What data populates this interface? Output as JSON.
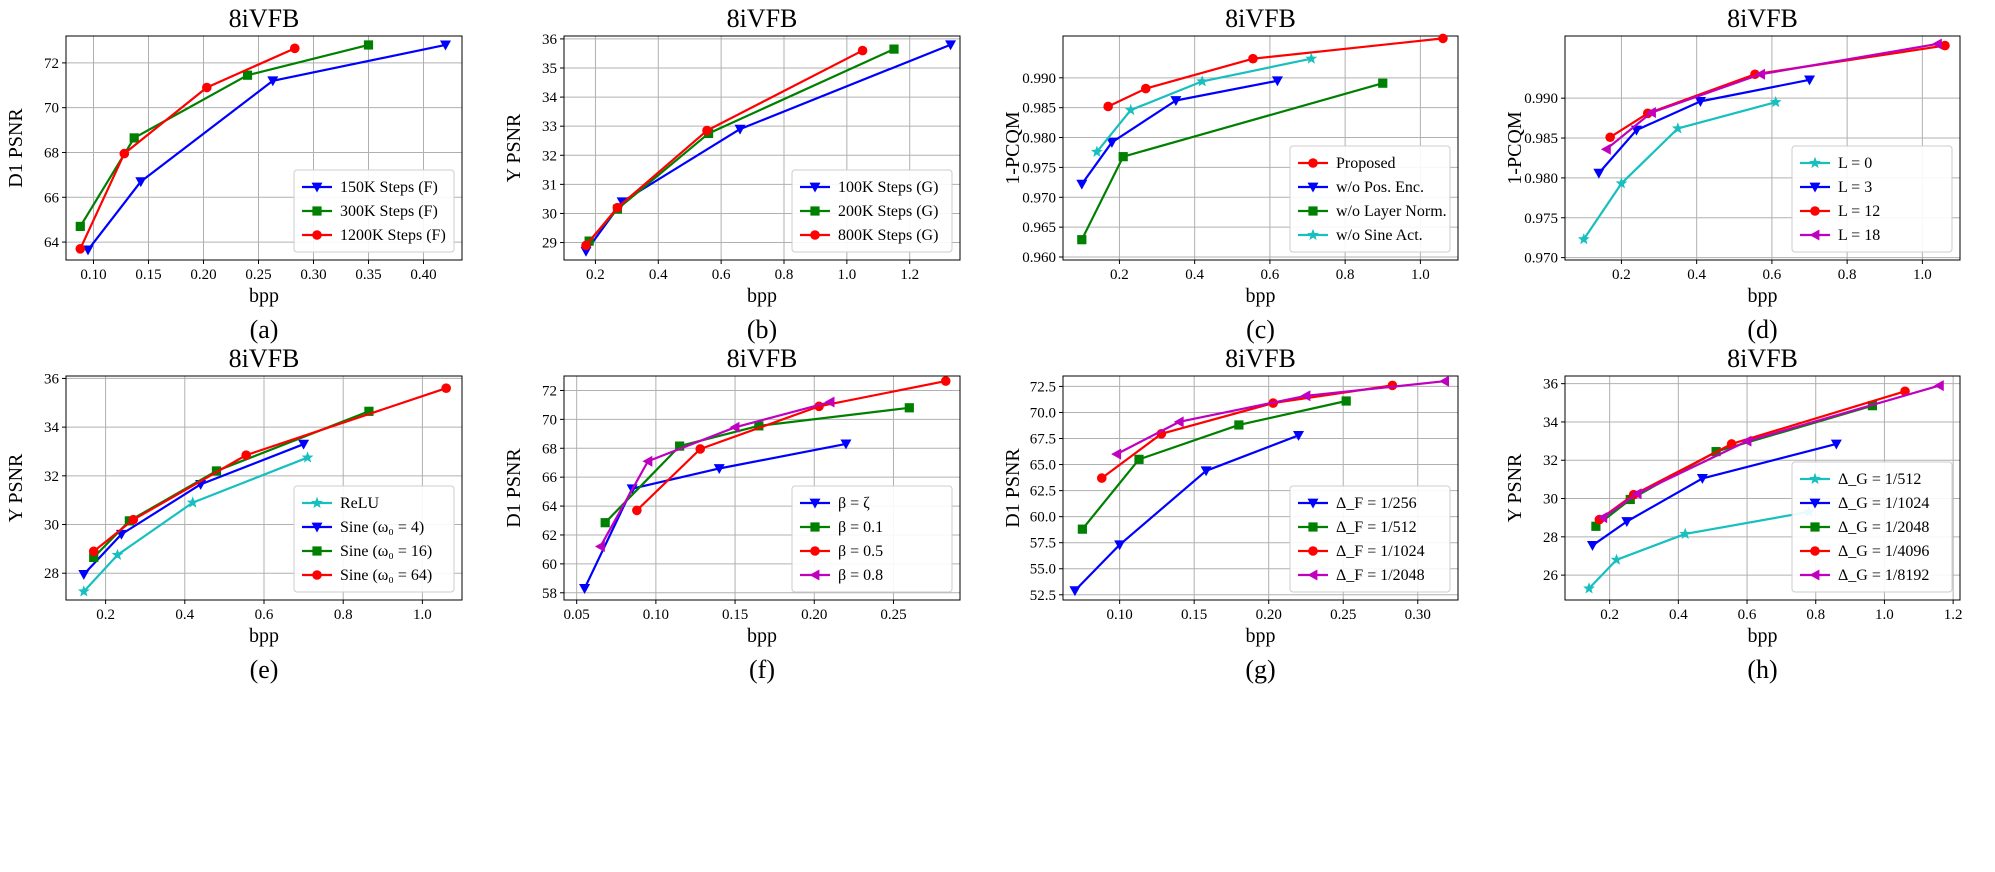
{
  "figure": {
    "colors": {
      "blue": "#0000ff",
      "green": "#008000",
      "red": "#ff0000",
      "cyan": "#17bfbf",
      "magenta": "#bf00bf",
      "grid": "#b0b0b0"
    }
  },
  "chart_data": [
    {
      "type": "line",
      "title": "8iVFB",
      "caption": "(a)",
      "xlabel": "bpp",
      "ylabel": "D1 PSNR",
      "xlim": [
        0.075,
        0.435
      ],
      "ylim": [
        63.2,
        73.2
      ],
      "xticks": [
        0.1,
        0.15,
        0.2,
        0.25,
        0.3,
        0.35,
        0.4
      ],
      "xtick_labels": [
        "0.10",
        "0.15",
        "0.20",
        "0.25",
        "0.30",
        "0.35",
        "0.40"
      ],
      "yticks": [
        64,
        66,
        68,
        70,
        72
      ],
      "ytick_labels": [
        "64",
        "66",
        "68",
        "70",
        "72"
      ],
      "legend_position": "lower-right",
      "series": [
        {
          "name": "150K Steps (F)",
          "color": "blue",
          "marker": "tri_down",
          "x": [
            0.095,
            0.143,
            0.263,
            0.42
          ],
          "y": [
            63.65,
            66.7,
            71.2,
            72.8
          ]
        },
        {
          "name": "300K Steps (F)",
          "color": "green",
          "marker": "square",
          "x": [
            0.088,
            0.137,
            0.24,
            0.35
          ],
          "y": [
            64.7,
            68.65,
            71.45,
            72.8
          ]
        },
        {
          "name": "1200K Steps (F)",
          "color": "red",
          "marker": "circle",
          "x": [
            0.088,
            0.128,
            0.203,
            0.283
          ],
          "y": [
            63.7,
            67.95,
            70.9,
            72.65
          ]
        }
      ]
    },
    {
      "type": "line",
      "title": "8iVFB",
      "caption": "(b)",
      "xlabel": "bpp",
      "ylabel": "Y PSNR",
      "xlim": [
        0.1,
        1.36
      ],
      "ylim": [
        28.4,
        36.1
      ],
      "xticks": [
        0.2,
        0.4,
        0.6,
        0.8,
        1.0,
        1.2
      ],
      "xtick_labels": [
        "0.2",
        "0.4",
        "0.6",
        "0.8",
        "1.0",
        "1.2"
      ],
      "yticks": [
        29,
        30,
        31,
        32,
        33,
        34,
        35,
        36
      ],
      "ytick_labels": [
        "29",
        "30",
        "31",
        "32",
        "33",
        "34",
        "35",
        "36"
      ],
      "legend_position": "lower-right",
      "series": [
        {
          "name": "100K Steps (G)",
          "color": "blue",
          "marker": "tri_down",
          "x": [
            0.17,
            0.285,
            0.66,
            1.33
          ],
          "y": [
            28.7,
            30.4,
            32.9,
            35.8
          ]
        },
        {
          "name": "200K Steps (G)",
          "color": "green",
          "marker": "square",
          "x": [
            0.18,
            0.27,
            0.56,
            1.15
          ],
          "y": [
            29.05,
            30.15,
            32.75,
            35.65
          ]
        },
        {
          "name": "800K Steps (G)",
          "color": "red",
          "marker": "circle",
          "x": [
            0.17,
            0.27,
            0.555,
            1.05
          ],
          "y": [
            28.9,
            30.2,
            32.85,
            35.6
          ]
        }
      ]
    },
    {
      "type": "line",
      "title": "8iVFB",
      "caption": "(c)",
      "xlabel": "bpp",
      "ylabel": "1-PCQM",
      "xlim": [
        0.05,
        1.1
      ],
      "ylim": [
        0.9595,
        0.997
      ],
      "xticks": [
        0.2,
        0.4,
        0.6,
        0.8,
        1.0
      ],
      "xtick_labels": [
        "0.2",
        "0.4",
        "0.6",
        "0.8",
        "1.0"
      ],
      "yticks": [
        0.96,
        0.965,
        0.97,
        0.975,
        0.98,
        0.985,
        0.99
      ],
      "ytick_labels": [
        "0.960",
        "0.965",
        "0.970",
        "0.975",
        "0.980",
        "0.985",
        "0.990"
      ],
      "legend_position": "lower-right",
      "series": [
        {
          "name": "Proposed",
          "color": "red",
          "marker": "circle",
          "x": [
            0.17,
            0.27,
            0.555,
            1.06
          ],
          "y": [
            0.9852,
            0.9882,
            0.9932,
            0.9966
          ]
        },
        {
          "name": "w/o Pos. Enc.",
          "color": "blue",
          "marker": "tri_down",
          "x": [
            0.1,
            0.18,
            0.35,
            0.62
          ],
          "y": [
            0.9722,
            0.9792,
            0.9862,
            0.9895
          ]
        },
        {
          "name": "w/o Layer Norm.",
          "color": "green",
          "marker": "square",
          "x": [
            0.1,
            0.21,
            0.9
          ],
          "y": [
            0.9629,
            0.9768,
            0.9891
          ]
        },
        {
          "name": "w/o Sine Act.",
          "color": "cyan",
          "marker": "star",
          "x": [
            0.14,
            0.23,
            0.42,
            0.71
          ],
          "y": [
            0.9776,
            0.9846,
            0.9894,
            0.9932
          ]
        }
      ]
    },
    {
      "type": "line",
      "title": "8iVFB",
      "caption": "(d)",
      "xlabel": "bpp",
      "ylabel": "1-PCQM",
      "xlim": [
        0.05,
        1.1
      ],
      "ylim": [
        0.9697,
        0.9978
      ],
      "xticks": [
        0.2,
        0.4,
        0.6,
        0.8,
        1.0
      ],
      "xtick_labels": [
        "0.2",
        "0.4",
        "0.6",
        "0.8",
        "1.0"
      ],
      "yticks": [
        0.97,
        0.975,
        0.98,
        0.985,
        0.99
      ],
      "ytick_labels": [
        "0.970",
        "0.975",
        "0.980",
        "0.985",
        "0.990"
      ],
      "legend_position": "lower-right",
      "series": [
        {
          "name": "L = 0",
          "color": "cyan",
          "marker": "star",
          "x": [
            0.1,
            0.2,
            0.35,
            0.61
          ],
          "y": [
            0.9723,
            0.9793,
            0.9862,
            0.9895
          ]
        },
        {
          "name": "L = 3",
          "color": "blue",
          "marker": "tri_down",
          "x": [
            0.14,
            0.24,
            0.41,
            0.7
          ],
          "y": [
            0.9806,
            0.986,
            0.9896,
            0.9923
          ]
        },
        {
          "name": "L = 12",
          "color": "red",
          "marker": "circle",
          "x": [
            0.17,
            0.27,
            0.555,
            1.06
          ],
          "y": [
            0.9851,
            0.9881,
            0.993,
            0.9966
          ]
        },
        {
          "name": "L = 18",
          "color": "magenta",
          "marker": "tri_left",
          "x": [
            0.16,
            0.28,
            0.57,
            1.04
          ],
          "y": [
            0.9836,
            0.9882,
            0.993,
            0.9968
          ]
        }
      ]
    },
    {
      "type": "line",
      "title": "8iVFB",
      "caption": "(e)",
      "xlabel": "bpp",
      "ylabel": "Y PSNR",
      "xlim": [
        0.1,
        1.1
      ],
      "ylim": [
        26.9,
        36.1
      ],
      "xticks": [
        0.2,
        0.4,
        0.6,
        0.8,
        1.0
      ],
      "xtick_labels": [
        "0.2",
        "0.4",
        "0.6",
        "0.8",
        "1.0"
      ],
      "yticks": [
        28,
        30,
        32,
        34,
        36
      ],
      "ytick_labels": [
        "28",
        "30",
        "32",
        "34",
        "36"
      ],
      "legend_position": "lower-right",
      "series": [
        {
          "name": "ReLU",
          "color": "cyan",
          "marker": "star",
          "x": [
            0.145,
            0.23,
            0.42,
            0.71
          ],
          "y": [
            27.25,
            28.75,
            30.9,
            32.75
          ]
        },
        {
          "name": "Sine (ω₀ = 4)",
          "color": "blue",
          "marker": "tri_down",
          "x": [
            0.145,
            0.24,
            0.44,
            0.7
          ],
          "y": [
            27.95,
            29.6,
            31.65,
            33.3
          ]
        },
        {
          "name": "Sine (ω₀ = 16)",
          "color": "green",
          "marker": "square",
          "x": [
            0.17,
            0.26,
            0.48,
            0.865
          ],
          "y": [
            28.65,
            30.15,
            32.2,
            34.65
          ]
        },
        {
          "name": "Sine (ω₀ = 64)",
          "color": "red",
          "marker": "circle",
          "x": [
            0.17,
            0.27,
            0.555,
            1.06
          ],
          "y": [
            28.9,
            30.2,
            32.85,
            35.6
          ]
        }
      ]
    },
    {
      "type": "line",
      "title": "8iVFB",
      "caption": "(f)",
      "xlabel": "bpp",
      "ylabel": "D1 PSNR",
      "xlim": [
        0.042,
        0.292
      ],
      "ylim": [
        57.5,
        73.0
      ],
      "xticks": [
        0.05,
        0.1,
        0.15,
        0.2,
        0.25
      ],
      "xtick_labels": [
        "0.05",
        "0.10",
        "0.15",
        "0.20",
        "0.25"
      ],
      "yticks": [
        58,
        60,
        62,
        64,
        66,
        68,
        70,
        72
      ],
      "ytick_labels": [
        "58",
        "60",
        "62",
        "64",
        "66",
        "68",
        "70",
        "72"
      ],
      "legend_position": "lower-right",
      "series": [
        {
          "name": "β = ζ",
          "color": "blue",
          "marker": "tri_down",
          "x": [
            0.055,
            0.085,
            0.14,
            0.22
          ],
          "y": [
            58.3,
            65.2,
            66.6,
            68.3
          ]
        },
        {
          "name": "β = 0.1",
          "color": "green",
          "marker": "square",
          "x": [
            0.068,
            0.115,
            0.165,
            0.26
          ],
          "y": [
            62.85,
            68.15,
            69.55,
            70.8
          ]
        },
        {
          "name": "β = 0.5",
          "color": "red",
          "marker": "circle",
          "x": [
            0.088,
            0.128,
            0.203,
            0.283
          ],
          "y": [
            63.7,
            67.95,
            70.9,
            72.65
          ]
        },
        {
          "name": "β = 0.8",
          "color": "magenta",
          "marker": "tri_left",
          "x": [
            0.065,
            0.095,
            0.15,
            0.21
          ],
          "y": [
            61.2,
            67.1,
            69.45,
            71.2
          ]
        }
      ]
    },
    {
      "type": "line",
      "title": "8iVFB",
      "caption": "(g)",
      "xlabel": "bpp",
      "ylabel": "D1 PSNR",
      "xlim": [
        0.062,
        0.327
      ],
      "ylim": [
        52.0,
        73.5
      ],
      "xticks": [
        0.1,
        0.15,
        0.2,
        0.25,
        0.3
      ],
      "xtick_labels": [
        "0.10",
        "0.15",
        "0.20",
        "0.25",
        "0.30"
      ],
      "yticks": [
        52.5,
        55.0,
        57.5,
        60.0,
        62.5,
        65.0,
        67.5,
        70.0,
        72.5
      ],
      "ytick_labels": [
        "52.5",
        "55.0",
        "57.5",
        "60.0",
        "62.5",
        "65.0",
        "67.5",
        "70.0",
        "72.5"
      ],
      "legend_position": "lower-right",
      "series": [
        {
          "name": "Δ_F = 1/256",
          "color": "blue",
          "marker": "tri_down",
          "x": [
            0.07,
            0.1,
            0.158,
            0.22
          ],
          "y": [
            52.9,
            57.3,
            64.4,
            67.8
          ]
        },
        {
          "name": "Δ_F = 1/512",
          "color": "green",
          "marker": "square",
          "x": [
            0.075,
            0.113,
            0.18,
            0.252
          ],
          "y": [
            58.8,
            65.5,
            68.8,
            71.1
          ]
        },
        {
          "name": "Δ_F = 1/1024",
          "color": "red",
          "marker": "circle",
          "x": [
            0.088,
            0.128,
            0.203,
            0.283
          ],
          "y": [
            63.7,
            67.95,
            70.9,
            72.6
          ]
        },
        {
          "name": "Δ_F = 1/2048",
          "color": "magenta",
          "marker": "tri_left",
          "x": [
            0.098,
            0.14,
            0.225,
            0.318
          ],
          "y": [
            66.0,
            69.1,
            71.6,
            73.0
          ]
        }
      ]
    },
    {
      "type": "line",
      "title": "8iVFB",
      "caption": "(h)",
      "xlabel": "bpp",
      "ylabel": "Y PSNR",
      "xlim": [
        0.07,
        1.22
      ],
      "ylim": [
        24.7,
        36.4
      ],
      "xticks": [
        0.2,
        0.4,
        0.6,
        0.8,
        1.0,
        1.2
      ],
      "xtick_labels": [
        "0.2",
        "0.4",
        "0.6",
        "0.8",
        "1.0",
        "1.2"
      ],
      "yticks": [
        26,
        28,
        30,
        32,
        34,
        36
      ],
      "ytick_labels": [
        "26",
        "28",
        "30",
        "32",
        "34",
        "36"
      ],
      "legend_position": "lower-right",
      "series": [
        {
          "name": "Δ_G = 1/512",
          "color": "cyan",
          "marker": "star",
          "x": [
            0.14,
            0.22,
            0.42,
            0.78
          ],
          "y": [
            25.3,
            26.8,
            28.15,
            29.3
          ]
        },
        {
          "name": "Δ_G = 1/1024",
          "color": "blue",
          "marker": "tri_down",
          "x": [
            0.15,
            0.25,
            0.47,
            0.86
          ],
          "y": [
            27.55,
            28.8,
            31.05,
            32.85
          ]
        },
        {
          "name": "Δ_G = 1/2048",
          "color": "green",
          "marker": "square",
          "x": [
            0.16,
            0.26,
            0.51,
            0.965
          ],
          "y": [
            28.55,
            29.95,
            32.45,
            34.85
          ]
        },
        {
          "name": "Δ_G = 1/4096",
          "color": "red",
          "marker": "circle",
          "x": [
            0.17,
            0.27,
            0.555,
            1.06
          ],
          "y": [
            28.9,
            30.2,
            32.85,
            35.6
          ]
        },
        {
          "name": "Δ_G = 1/8192",
          "color": "magenta",
          "marker": "tri_left",
          "x": [
            0.18,
            0.28,
            0.6,
            1.16
          ],
          "y": [
            29.0,
            30.25,
            33.0,
            35.9
          ]
        }
      ]
    }
  ]
}
